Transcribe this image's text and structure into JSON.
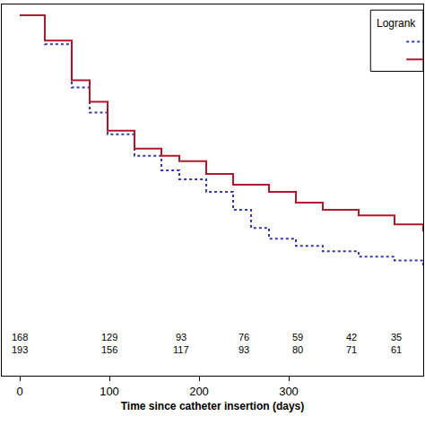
{
  "chart_data": {
    "type": "line",
    "xlabel": "Time since catheter insertion (days)",
    "xlim": [
      -20,
      450
    ],
    "xticks": [
      0,
      100,
      200,
      300
    ],
    "ylim": [
      0,
      1.03
    ],
    "tick_labels": "x",
    "grid": false,
    "legend": "top right",
    "annotations": [
      {
        "text": "Logrank"
      }
    ],
    "series": [
      {
        "color": "#3a3aad",
        "line_style": "dotted",
        "x": [
          0,
          10,
          28,
          58,
          78,
          98,
          128,
          158,
          178,
          208,
          238,
          258,
          278,
          308,
          338,
          378,
          418,
          450
        ],
        "values": [
          1.0,
          1.0,
          0.92,
          0.8,
          0.73,
          0.67,
          0.61,
          0.57,
          0.545,
          0.51,
          0.46,
          0.41,
          0.38,
          0.36,
          0.345,
          0.33,
          0.32,
          0.3
        ]
      },
      {
        "color": "#b2182b",
        "line_style": "solid",
        "x": [
          0,
          10,
          28,
          58,
          78,
          98,
          128,
          158,
          178,
          208,
          238,
          278,
          308,
          338,
          378,
          418,
          450
        ],
        "values": [
          1.0,
          1.0,
          0.93,
          0.82,
          0.76,
          0.68,
          0.63,
          0.61,
          0.595,
          0.56,
          0.53,
          0.51,
          0.48,
          0.46,
          0.445,
          0.42,
          0.4
        ]
      }
    ],
    "at_risk": {
      "x": [
        0,
        100,
        180,
        250,
        310,
        370,
        420
      ],
      "rows": [
        [
          168,
          129,
          93,
          76,
          59,
          42,
          35
        ],
        [
          193,
          156,
          117,
          93,
          80,
          71,
          61
        ]
      ]
    }
  }
}
